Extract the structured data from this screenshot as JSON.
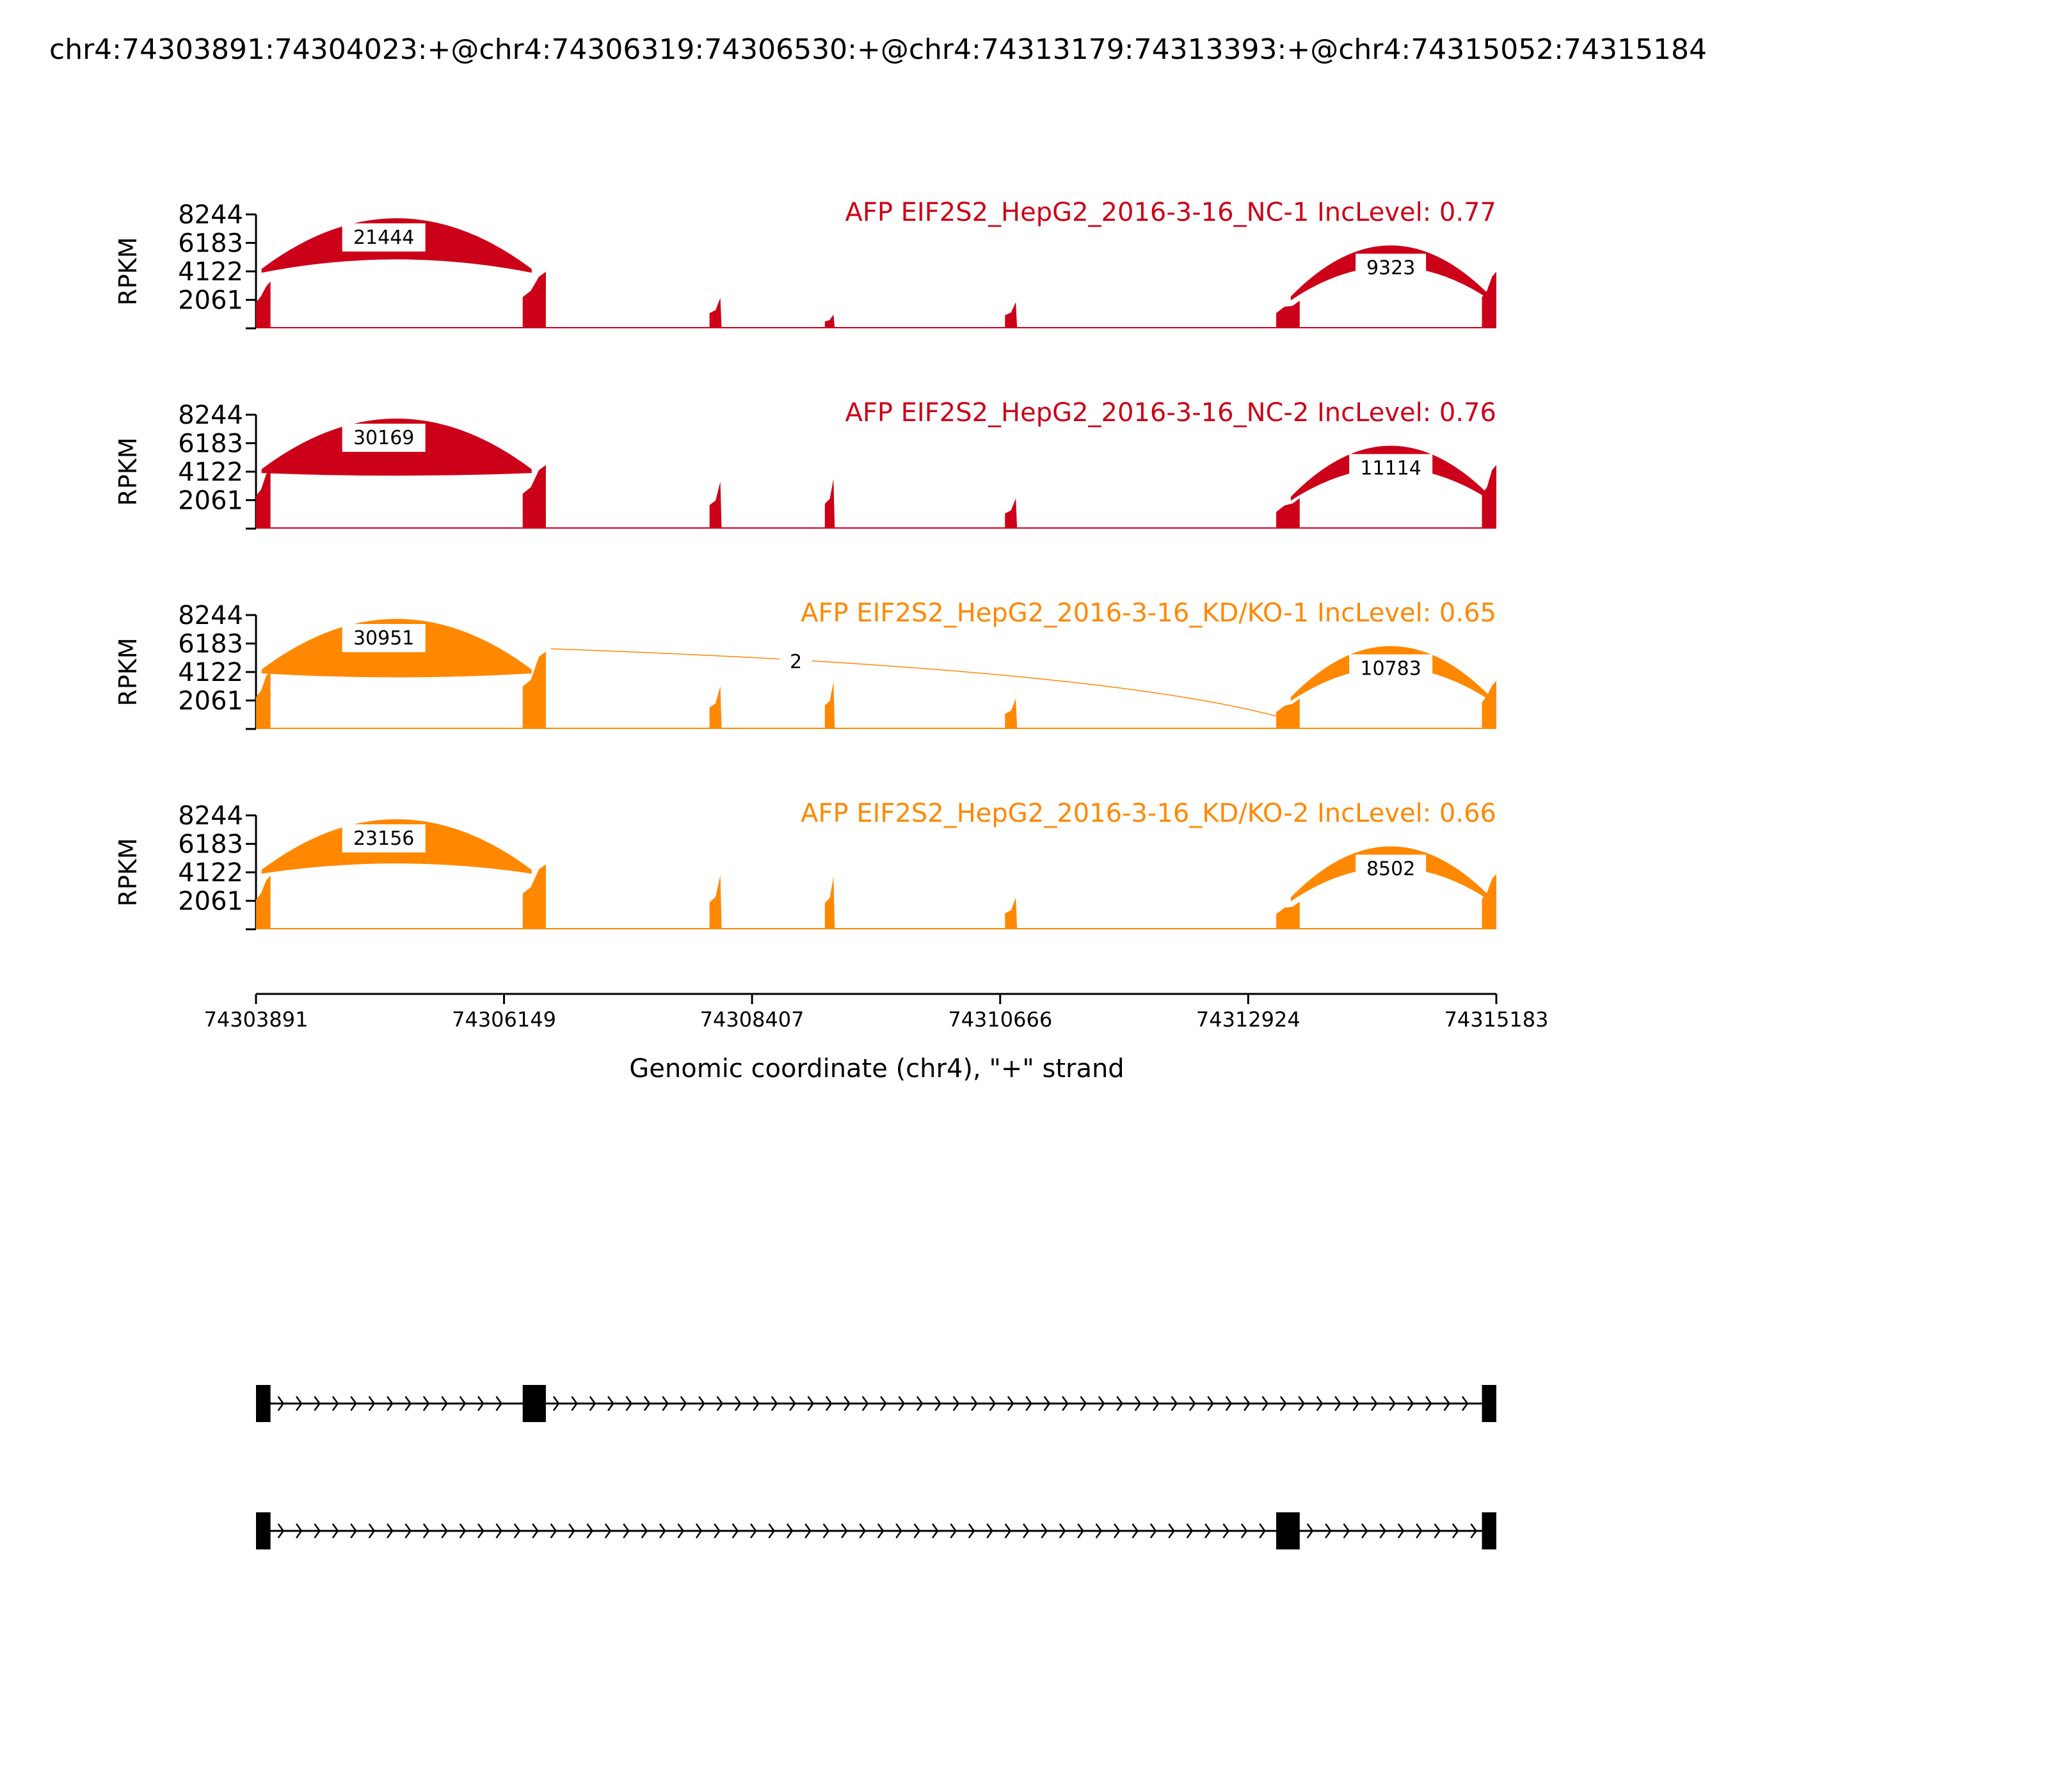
{
  "chart_data": {
    "type": "sashimi",
    "title": "chr4:74303891:74304023:+@chr4:74306319:74306530:+@chr4:74313179:74313393:+@chr4:74315052:74315184",
    "xlabel": "Genomic coordinate (chr4), \"+\" strand",
    "ylabel": "RPKM",
    "xlim": [
      74303891,
      74315183
    ],
    "x_ticks": [
      74303891,
      74306149,
      74308407,
      74310666,
      74312924,
      74315183
    ],
    "ylim": [
      0,
      8244
    ],
    "y_ticks": [
      2061,
      4122,
      6183,
      8244
    ],
    "colors": {
      "NC": "#cc0018",
      "KD": "#ff8800"
    },
    "exons": [
      {
        "start": 74303891,
        "end": 74304023
      },
      {
        "start": 74306319,
        "end": 74306530
      },
      {
        "start": 74313179,
        "end": 74313393
      },
      {
        "start": 74315052,
        "end": 74315183
      }
    ],
    "minor_peaks": [
      {
        "start": 74308020,
        "end": 74308130
      },
      {
        "start": 74309070,
        "end": 74309160
      },
      {
        "start": 74310710,
        "end": 74310820
      }
    ],
    "panels": [
      {
        "label": "AFP EIF2S2_HepG2_2016-3-16_NC-1 IncLevel: 0.77",
        "color": "#cc0018",
        "exon_peaks": [
          3400,
          4100,
          2000,
          4100
        ],
        "minor_peaks": [
          2200,
          1000,
          1900
        ],
        "junctions": [
          {
            "start": 74304023,
            "end": 74306319,
            "count": 21444
          },
          {
            "start": 74313393,
            "end": 74315052,
            "count": 9323
          }
        ]
      },
      {
        "label": "AFP EIF2S2_HepG2_2016-3-16_NC-2 IncLevel: 0.76",
        "color": "#cc0018",
        "exon_peaks": [
          4300,
          4600,
          2200,
          4600
        ],
        "minor_peaks": [
          3400,
          3600,
          2200
        ],
        "junctions": [
          {
            "start": 74304023,
            "end": 74306319,
            "count": 30169
          },
          {
            "start": 74313393,
            "end": 74315052,
            "count": 11114
          }
        ]
      },
      {
        "label": "AFP EIF2S2_HepG2_2016-3-16_KD/KO-1 IncLevel: 0.65",
        "color": "#ff8800",
        "exon_peaks": [
          4200,
          5600,
          2200,
          3500
        ],
        "minor_peaks": [
          3100,
          3400,
          2200
        ],
        "junctions": [
          {
            "start": 74304023,
            "end": 74306319,
            "count": 30951
          },
          {
            "start": 74306530,
            "end": 74313179,
            "count": 2
          },
          {
            "start": 74313393,
            "end": 74315052,
            "count": 10783
          }
        ]
      },
      {
        "label": "AFP EIF2S2_HepG2_2016-3-16_KD/KO-2 IncLevel: 0.66",
        "color": "#ff8800",
        "exon_peaks": [
          3900,
          4700,
          2000,
          4000
        ],
        "minor_peaks": [
          3900,
          3800,
          2300
        ],
        "junctions": [
          {
            "start": 74304023,
            "end": 74306319,
            "count": 23156
          },
          {
            "start": 74313393,
            "end": 74315052,
            "count": 8502
          }
        ]
      }
    ],
    "isoforms": [
      {
        "exons": [
          [
            74303891,
            74304023
          ],
          [
            74306319,
            74306530
          ],
          [
            74315052,
            74315183
          ]
        ]
      },
      {
        "exons": [
          [
            74303891,
            74304023
          ],
          [
            74313179,
            74313393
          ],
          [
            74315052,
            74315183
          ]
        ]
      }
    ]
  }
}
